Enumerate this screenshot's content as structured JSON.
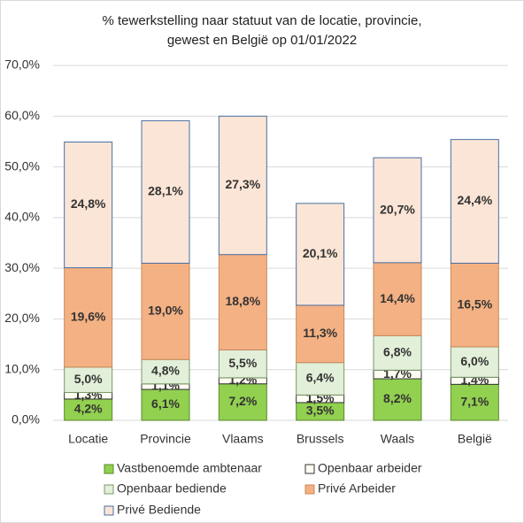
{
  "chart_data": {
    "type": "stacked_bar",
    "title": [
      "% tewerkstelling naar statuut van de locatie, provincie,",
      "gewest en België op 01/01/2022"
    ],
    "categories": [
      "Locatie",
      "Provincie",
      "Vlaams",
      "Brussels",
      "Waals",
      "België"
    ],
    "series": [
      {
        "name": "Vastbenoemde ambtenaar",
        "color": "#92d050",
        "edgecolor": "#5a8a2a",
        "values": [
          4.2,
          6.1,
          7.2,
          3.5,
          8.2,
          7.1
        ],
        "value_labels": [
          "4,2%",
          "6,1%",
          "7,2%",
          "3,5%",
          "8,2%",
          "7,1%"
        ]
      },
      {
        "name": "Openbaar arbeider",
        "color": "#fffdf2",
        "edgecolor": "#333333",
        "values": [
          1.3,
          1.1,
          1.2,
          1.5,
          1.7,
          1.4
        ],
        "value_labels": [
          "1,3%",
          "1,1%",
          "1,2%",
          "1,5%",
          "1,7%",
          "1,4%"
        ]
      },
      {
        "name": "Openbaar bediende",
        "color": "#e2efd9",
        "edgecolor": "#7a9a6a",
        "values": [
          5.0,
          4.8,
          5.5,
          6.4,
          6.8,
          6.0
        ],
        "value_labels": [
          "5,0%",
          "4,8%",
          "5,5%",
          "6,4%",
          "6,8%",
          "6,0%"
        ]
      },
      {
        "name": "Privé Arbeider",
        "color": "#f4b183",
        "edgecolor": "#c98a5a",
        "values": [
          19.6,
          19.0,
          18.8,
          11.3,
          14.4,
          16.5
        ],
        "value_labels": [
          "19,6%",
          "19,0%",
          "18,8%",
          "11,3%",
          "14,4%",
          "16,5%"
        ]
      },
      {
        "name": "Privé Bediende",
        "color": "#fbe5d6",
        "edgecolor": "#4a6fa5",
        "values": [
          24.8,
          28.1,
          27.3,
          20.1,
          20.7,
          24.4
        ],
        "value_labels": [
          "24,8%",
          "28,1%",
          "27,3%",
          "20,1%",
          "20,7%",
          "24,4%"
        ]
      }
    ],
    "ylim": [
      0,
      70
    ],
    "yticks": [
      {
        "value": 0,
        "label": "0,0%"
      },
      {
        "value": 10,
        "label": "10,0%"
      },
      {
        "value": 20,
        "label": "20,0%"
      },
      {
        "value": 30,
        "label": "30,0%"
      },
      {
        "value": 40,
        "label": "40,0%"
      },
      {
        "value": 50,
        "label": "50,0%"
      },
      {
        "value": 60,
        "label": "60,0%"
      },
      {
        "value": 70,
        "label": "70,0%"
      }
    ],
    "grid": true
  }
}
